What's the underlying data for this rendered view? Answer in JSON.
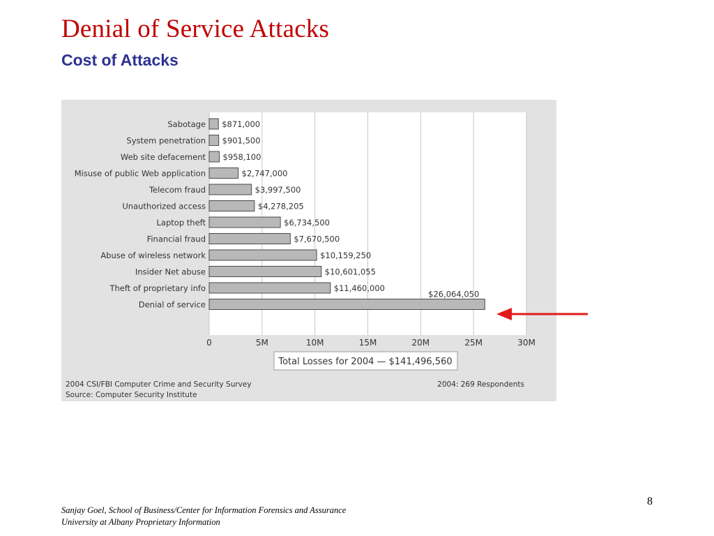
{
  "slide": {
    "title": "Denial of Service Attacks",
    "subtitle": "Cost of Attacks",
    "footer_author": "Sanjay Goel, School of Business/Center for Information Forensics and Assurance",
    "footer_org": "University at Albany Proprietary Information",
    "page_number": "8"
  },
  "colors": {
    "title": "#c00000",
    "subtitle": "#2e3192",
    "bar_fill": "#b8b8b8",
    "panel": "#e2e2e2",
    "arrow": "#e21a1a"
  },
  "chart_data": {
    "type": "bar",
    "orientation": "horizontal",
    "categories": [
      "Sabotage",
      "System penetration",
      "Web site defacement",
      "Misuse of public Web application",
      "Telecom fraud",
      "Unauthorized access",
      "Laptop theft",
      "Financial fraud",
      "Abuse of wireless network",
      "Insider Net abuse",
      "Theft of proprietary info",
      "Denial of service"
    ],
    "values": [
      871000,
      901500,
      958100,
      2747000,
      3997500,
      4278205,
      6734500,
      7670500,
      10159250,
      10601055,
      11460000,
      26064050
    ],
    "value_labels": [
      "$871,000",
      "$901,500",
      "$958,100",
      "$2,747,000",
      "$3,997,500",
      "$4,278,205",
      "$6,734,500",
      "$7,670,500",
      "$10,159,250",
      "$10,601,055",
      "$11,460,000",
      "$26,064,050"
    ],
    "xlim": [
      0,
      30000000
    ],
    "xticks": [
      0,
      5000000,
      10000000,
      15000000,
      20000000,
      25000000,
      30000000
    ],
    "xtick_labels": [
      "0",
      "5M",
      "10M",
      "15M",
      "20M",
      "25M",
      "30M"
    ],
    "grid": "vertical",
    "total_label": "Total Losses for 2004 — $141,496,560",
    "source_line1": "2004 CSI/FBI Computer Crime and Security Survey",
    "source_line2": "Source: Computer Security Institute",
    "respondents": "2004: 269 Respondents",
    "highlight": "Denial of service"
  }
}
